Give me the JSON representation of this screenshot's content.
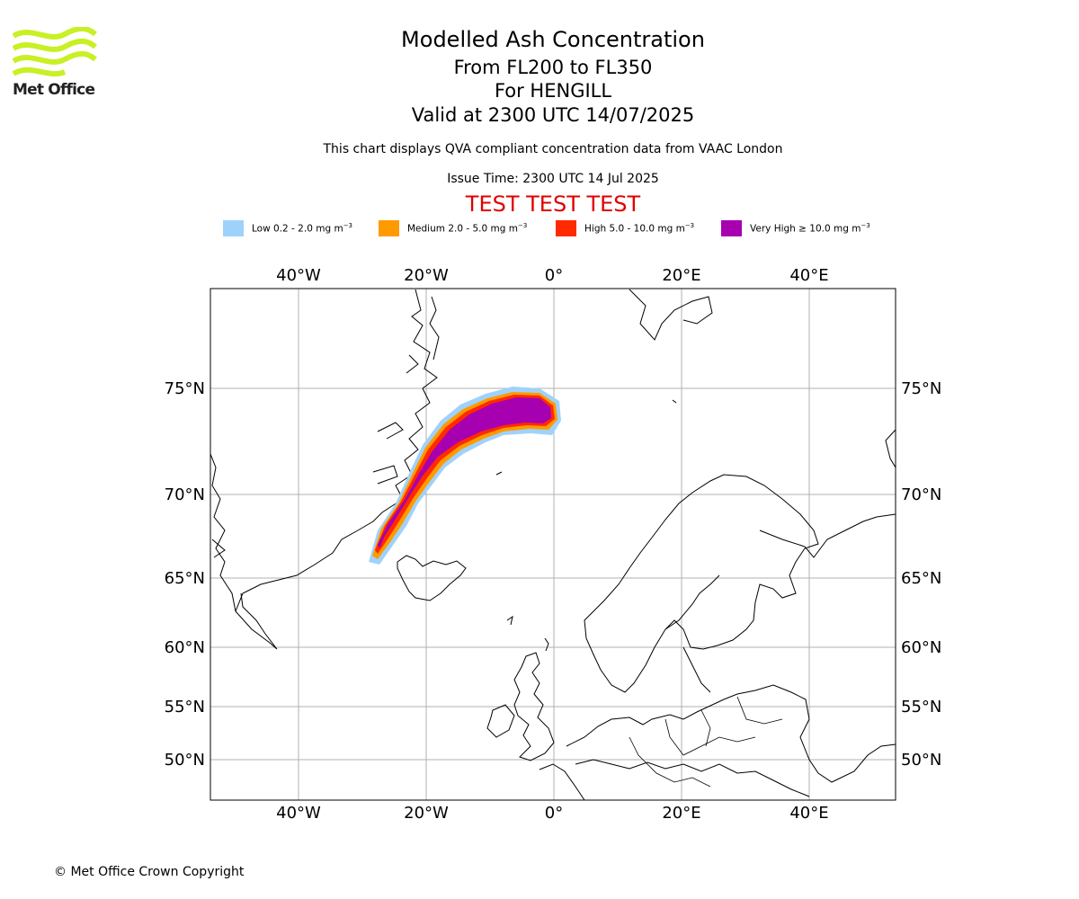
{
  "header": {
    "title": "Modelled Ash Concentration",
    "levels": "From FL200 to FL350",
    "volcano": "For HENGILL",
    "valid": "Valid at 2300 UTC 14/07/2025",
    "description": "This chart displays QVA compliant concentration data from VAAC London",
    "issue_time": "Issue Time: 2300 UTC 14 Jul 2025",
    "test_banner": "TEST TEST TEST"
  },
  "logo": {
    "text": "Met Office",
    "icon": "met-office-waves-logo",
    "color": "#c8f024"
  },
  "legend": [
    {
      "label": "Low 0.2 - 2.0 mg m",
      "unit_sup": "−3",
      "color": "#9fd2fb"
    },
    {
      "label": "Medium 2.0 - 5.0 mg m",
      "unit_sup": "−3",
      "color": "#ff9a00"
    },
    {
      "label": "High 5.0 - 10.0 mg m",
      "unit_sup": "−3",
      "color": "#ff2a00"
    },
    {
      "label": "Very High  ≥  10.0 mg m",
      "unit_sup": "−3",
      "color": "#a600b0"
    }
  ],
  "map": {
    "projection": "stereographic",
    "gridlines": true,
    "lon_labels": [
      "40°W",
      "20°W",
      "0°",
      "20°E",
      "40°E"
    ],
    "lat_labels": [
      "75°N",
      "70°N",
      "65°N",
      "60°N",
      "55°N",
      "50°N"
    ]
  },
  "footer": {
    "copyright": "© Met Office Crown Copyright"
  }
}
